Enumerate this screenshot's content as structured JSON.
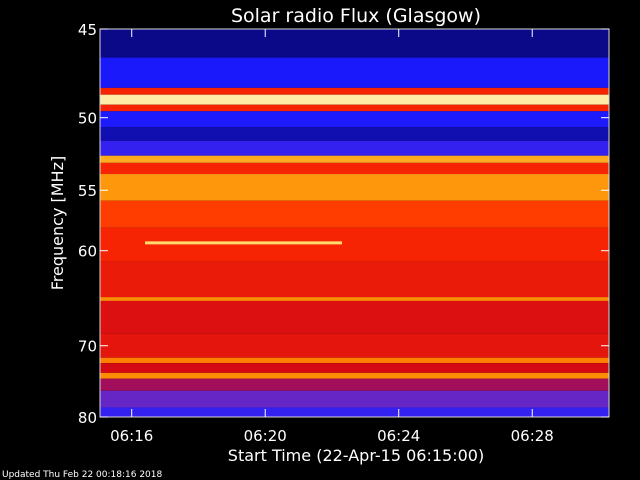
{
  "chart_data": {
    "type": "heatmap",
    "title": "Solar radio Flux (Glasgow)",
    "xlabel": "Start Time (22-Apr-15 06:15:00)",
    "ylabel": "Frequency [MHz]",
    "x_ticks": [
      "06:16",
      "06:20",
      "06:24",
      "06:28"
    ],
    "y_ticks": [
      "45",
      "50",
      "55",
      "60",
      "70",
      "80"
    ],
    "xlim_minutes": [
      15.05,
      30.3
    ],
    "xtick_minutes": [
      16,
      20,
      24,
      28
    ],
    "ylim_mhz": [
      45,
      80
    ],
    "y_scale": "reciprocal",
    "ytick_mhz": [
      45,
      50,
      55,
      60,
      70,
      80
    ],
    "colormap": [
      "#05004a",
      "#1a1aff",
      "#5a2ad8",
      "#c8001a",
      "#ff2a00",
      "#ff8a00",
      "#ffd24a",
      "#fff4c0"
    ],
    "bands": [
      {
        "from": 44.5,
        "to": 46.5,
        "level": 0.05
      },
      {
        "from": 46.5,
        "to": 48.2,
        "level": 0.14
      },
      {
        "from": 48.2,
        "to": 48.6,
        "level": 0.55
      },
      {
        "from": 48.6,
        "to": 49.2,
        "level": 0.97
      },
      {
        "from": 49.2,
        "to": 49.6,
        "level": 0.55
      },
      {
        "from": 49.6,
        "to": 50.6,
        "level": 0.15
      },
      {
        "from": 50.6,
        "to": 51.5,
        "level": 0.08
      },
      {
        "from": 51.5,
        "to": 52.5,
        "level": 0.2
      },
      {
        "from": 52.5,
        "to": 53.0,
        "level": 0.78
      },
      {
        "from": 53.0,
        "to": 53.8,
        "level": 0.55
      },
      {
        "from": 53.8,
        "to": 55.8,
        "level": 0.74
      },
      {
        "from": 55.8,
        "to": 58.0,
        "level": 0.6
      },
      {
        "from": 58.0,
        "to": 61.0,
        "level": 0.55
      },
      {
        "from": 61.0,
        "to": 64.5,
        "level": 0.52
      },
      {
        "from": 64.5,
        "to": 64.9,
        "level": 0.72
      },
      {
        "from": 64.9,
        "to": 68.5,
        "level": 0.48
      },
      {
        "from": 68.5,
        "to": 71.5,
        "level": 0.5
      },
      {
        "from": 71.5,
        "to": 72.2,
        "level": 0.7
      },
      {
        "from": 72.2,
        "to": 73.5,
        "level": 0.46
      },
      {
        "from": 73.5,
        "to": 74.3,
        "level": 0.72
      },
      {
        "from": 74.3,
        "to": 76.0,
        "level": 0.38
      },
      {
        "from": 76.0,
        "to": 78.5,
        "level": 0.3
      },
      {
        "from": 78.5,
        "to": 80.5,
        "level": 0.2
      }
    ],
    "features": [
      {
        "kind": "horizontal-burst",
        "mhz": 59.3,
        "from_min": 16.4,
        "to_min": 22.3,
        "level": 0.9
      }
    ],
    "grid": false
  },
  "footer": {
    "updated": "Updated Thu Feb 22 00:18:16 2018"
  }
}
